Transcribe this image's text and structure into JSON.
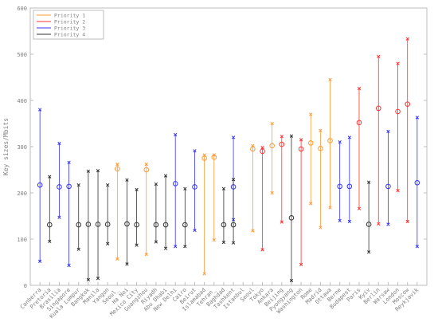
{
  "chart_data": {
    "type": "scatter",
    "title": "",
    "xlabel": "",
    "ylabel": "Key sizes/Mbits",
    "ylim": [
      0,
      600
    ],
    "yticks": [
      0,
      100,
      200,
      300,
      400,
      500,
      600
    ],
    "grid": false,
    "legend_position": "top-left",
    "colors": {
      "Priority 1": "#ff9933",
      "Priority 2": "#ff3333",
      "Priority 3": "#3333ff",
      "Priority 4": "#333333"
    },
    "categories": [
      "Canberra",
      "Pretoria",
      "Brasilia",
      "Singapore",
      "Kuala Lumpur",
      "Bangkok",
      "Manila",
      "Yangon",
      "Seoul_",
      "Ha Noi",
      "Mexico City",
      "Guangzhou",
      "Riyadh",
      "Abu Dhabi",
      "New Delhi",
      "Cairo",
      "Beirut",
      "Islamabad",
      "Tehran_",
      "Baghdad",
      "Tashkent",
      "Istanbul",
      "Seoul",
      "Tokyo",
      "Ankara",
      "Beijing",
      "Pyongyang",
      "Washington",
      "Rome",
      "Madrid",
      "Ottawa",
      "Berne",
      "Budapest",
      "Paris",
      "Kyiv",
      "Berlin",
      "Warsaw",
      "London",
      "Moscow",
      "Reykjavik"
    ],
    "series": [
      {
        "name": "Priority 1",
        "marker": "circle",
        "values": [
          null,
          null,
          null,
          null,
          null,
          null,
          null,
          null,
          {
            "y": 252,
            "lo": 57,
            "hi": 262
          },
          null,
          null,
          {
            "y": 250,
            "lo": 67,
            "hi": 262
          },
          null,
          null,
          null,
          null,
          null,
          {
            "y": 275,
            "lo": 25,
            "hi": 282
          },
          {
            "y": 277,
            "lo": 98,
            "hi": 282
          },
          null,
          null,
          null,
          {
            "y": 295,
            "lo": 118,
            "hi": 302
          },
          null,
          {
            "y": 302,
            "lo": 200,
            "hi": 350
          },
          null,
          null,
          null,
          {
            "y": 308,
            "lo": 177,
            "hi": 370
          },
          {
            "y": 296,
            "lo": 125,
            "hi": 335
          },
          {
            "y": 313,
            "lo": 168,
            "hi": 445
          },
          null,
          null,
          null,
          null,
          null,
          null,
          null,
          null,
          null
        ]
      },
      {
        "name": "Priority 2",
        "marker": "circle",
        "values": [
          null,
          null,
          null,
          null,
          null,
          null,
          null,
          null,
          null,
          null,
          null,
          null,
          null,
          null,
          null,
          null,
          null,
          null,
          null,
          null,
          null,
          null,
          null,
          {
            "y": 290,
            "lo": 77,
            "hi": 298
          },
          null,
          {
            "y": 305,
            "lo": 137,
            "hi": 322
          },
          null,
          {
            "y": 295,
            "lo": 45,
            "hi": 315
          },
          null,
          null,
          null,
          null,
          null,
          {
            "y": 352,
            "lo": 166,
            "hi": 426
          },
          null,
          {
            "y": 383,
            "lo": 133,
            "hi": 495
          },
          null,
          {
            "y": 376,
            "lo": 205,
            "hi": 480
          },
          {
            "y": 392,
            "lo": 138,
            "hi": 533
          },
          null
        ]
      },
      {
        "name": "Priority 3",
        "marker": "circle",
        "values": [
          {
            "y": 217,
            "lo": 52,
            "hi": 380
          },
          null,
          {
            "y": 213,
            "lo": 147,
            "hi": 307
          },
          {
            "y": 214,
            "lo": 43,
            "hi": 266
          },
          null,
          null,
          null,
          null,
          null,
          null,
          null,
          null,
          null,
          null,
          {
            "y": 220,
            "lo": 84,
            "hi": 326
          },
          null,
          {
            "y": 213,
            "lo": 119,
            "hi": 291
          },
          null,
          null,
          null,
          {
            "y": 213,
            "lo": 142,
            "hi": 320
          },
          null,
          null,
          null,
          null,
          null,
          null,
          null,
          null,
          null,
          null,
          {
            "y": 214,
            "lo": 140,
            "hi": 310
          },
          {
            "y": 214,
            "lo": 138,
            "hi": 320
          },
          null,
          null,
          null,
          {
            "y": 214,
            "lo": 132,
            "hi": 333
          },
          null,
          null,
          {
            "y": 222,
            "lo": 84,
            "hi": 363
          }
        ]
      },
      {
        "name": "Priority 4",
        "marker": "circle",
        "values": [
          null,
          {
            "y": 131,
            "lo": 95,
            "hi": 235
          },
          null,
          null,
          {
            "y": 131,
            "lo": 78,
            "hi": 217
          },
          {
            "y": 132,
            "lo": 12,
            "hi": 247
          },
          {
            "y": 132,
            "lo": 15,
            "hi": 248
          },
          {
            "y": 132,
            "lo": 90,
            "hi": 217
          },
          null,
          {
            "y": 133,
            "lo": 46,
            "hi": 228
          },
          {
            "y": 131,
            "lo": 87,
            "hi": 207
          },
          null,
          {
            "y": 131,
            "lo": 94,
            "hi": 219
          },
          {
            "y": 131,
            "lo": 80,
            "hi": 237
          },
          null,
          {
            "y": 131,
            "lo": 84,
            "hi": 209
          },
          null,
          null,
          null,
          {
            "y": 131,
            "lo": 93,
            "hi": 209
          },
          {
            "y": 131,
            "lo": 92,
            "hi": 229
          },
          null,
          null,
          null,
          null,
          null,
          {
            "y": 146,
            "lo": 10,
            "hi": 323
          },
          null,
          null,
          null,
          null,
          null,
          null,
          null,
          {
            "y": 132,
            "lo": 72,
            "hi": 223
          },
          null,
          null,
          null,
          null,
          null
        ]
      }
    ]
  }
}
